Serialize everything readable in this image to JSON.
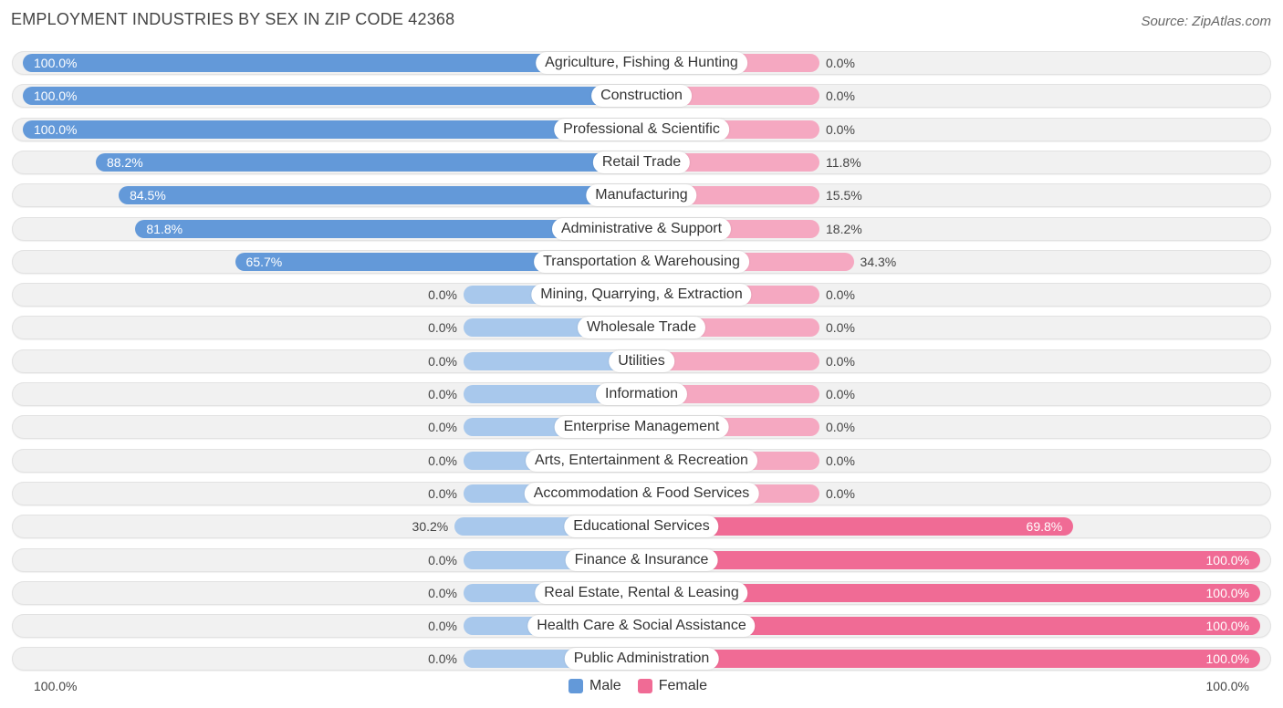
{
  "title": "EMPLOYMENT INDUSTRIES BY SEX IN ZIP CODE 42368",
  "source": "Source: ZipAtlas.com",
  "colors": {
    "male_strong": "#6399d9",
    "male_light": "#a8c8ec",
    "female_strong": "#f06b95",
    "female_light": "#f5a8c1"
  },
  "legend": {
    "male": "Male",
    "female": "Female"
  },
  "axis": {
    "left_label": "100.0%",
    "right_label": "100.0%"
  },
  "chart_data": {
    "type": "bar",
    "orientation": "horizontal-diverging",
    "title": "EMPLOYMENT INDUSTRIES BY SEX IN ZIP CODE 42368",
    "xlim": [
      -100,
      100
    ],
    "categories": [
      "Agriculture, Fishing & Hunting",
      "Construction",
      "Professional & Scientific",
      "Retail Trade",
      "Manufacturing",
      "Administrative & Support",
      "Transportation & Warehousing",
      "Mining, Quarrying, & Extraction",
      "Wholesale Trade",
      "Utilities",
      "Information",
      "Enterprise Management",
      "Arts, Entertainment & Recreation",
      "Accommodation & Food Services",
      "Educational Services",
      "Finance & Insurance",
      "Real Estate, Rental & Leasing",
      "Health Care & Social Assistance",
      "Public Administration"
    ],
    "series": [
      {
        "name": "Male",
        "values": [
          100.0,
          100.0,
          100.0,
          88.2,
          84.5,
          81.8,
          65.7,
          0.0,
          0.0,
          0.0,
          0.0,
          0.0,
          0.0,
          0.0,
          30.2,
          0.0,
          0.0,
          0.0,
          0.0
        ],
        "labels": [
          "100.0%",
          "100.0%",
          "100.0%",
          "88.2%",
          "84.5%",
          "81.8%",
          "65.7%",
          "0.0%",
          "0.0%",
          "0.0%",
          "0.0%",
          "0.0%",
          "0.0%",
          "0.0%",
          "30.2%",
          "0.0%",
          "0.0%",
          "0.0%",
          "0.0%"
        ]
      },
      {
        "name": "Female",
        "values": [
          0.0,
          0.0,
          0.0,
          11.8,
          15.5,
          18.2,
          34.3,
          0.0,
          0.0,
          0.0,
          0.0,
          0.0,
          0.0,
          0.0,
          69.8,
          100.0,
          100.0,
          100.0,
          100.0
        ],
        "labels": [
          "0.0%",
          "0.0%",
          "0.0%",
          "11.8%",
          "15.5%",
          "18.2%",
          "34.3%",
          "0.0%",
          "0.0%",
          "0.0%",
          "0.0%",
          "0.0%",
          "0.0%",
          "0.0%",
          "69.8%",
          "100.0%",
          "100.0%",
          "100.0%",
          "100.0%"
        ]
      }
    ],
    "legend_position": "bottom-center"
  }
}
